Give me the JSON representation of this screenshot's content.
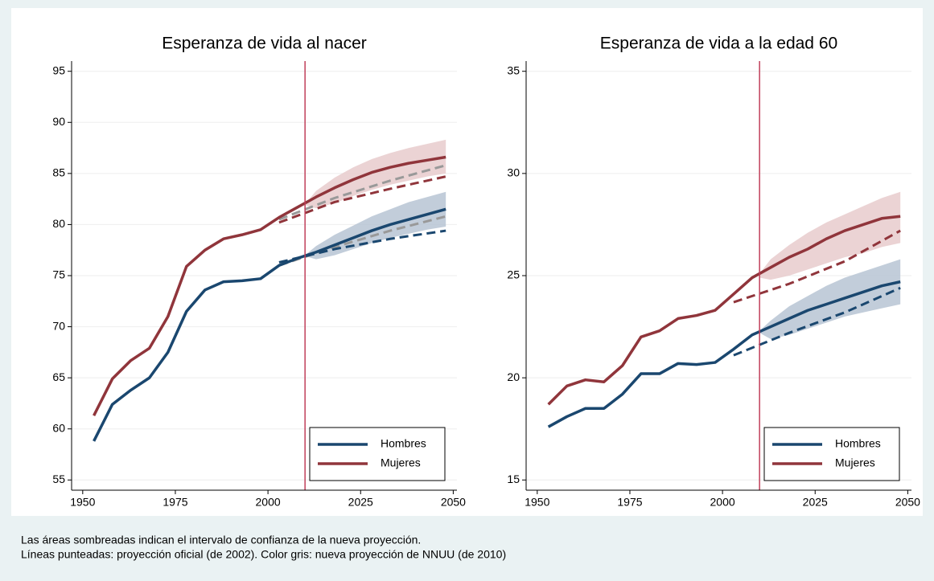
{
  "chart_data": [
    {
      "type": "line",
      "title": "Esperanza de vida al nacer",
      "xlim": [
        1947,
        2051
      ],
      "xticks": [
        1950,
        1975,
        2000,
        2025,
        2050
      ],
      "ylim": [
        54,
        96
      ],
      "yticks": [
        55,
        60,
        65,
        70,
        75,
        80,
        85,
        90,
        95
      ],
      "grid": true,
      "vline": 2010,
      "vline_color": "#c0405a",
      "legend": "bottom-right",
      "bands": [
        {
          "color": "#b7c4d3",
          "x": [
            2010,
            2013,
            2018,
            2023,
            2028,
            2033,
            2038,
            2043,
            2048
          ],
          "lower": [
            76.9,
            76.6,
            77.0,
            77.6,
            78.2,
            78.7,
            79.1,
            79.5,
            79.8
          ],
          "upper": [
            77.0,
            77.9,
            79.0,
            79.9,
            80.8,
            81.5,
            82.2,
            82.7,
            83.2
          ]
        },
        {
          "color": "#e8cbcc",
          "x": [
            2010,
            2013,
            2018,
            2023,
            2028,
            2033,
            2038,
            2043,
            2048
          ],
          "lower": [
            81.9,
            81.6,
            82.1,
            82.8,
            83.4,
            83.9,
            84.3,
            84.7,
            85.0
          ],
          "upper": [
            82.0,
            83.3,
            84.6,
            85.6,
            86.4,
            87.0,
            87.5,
            87.9,
            88.3
          ]
        }
      ],
      "series": [
        {
          "color": "#999999",
          "dash": true,
          "x": [
            2003,
            2018,
            2033,
            2048
          ],
          "values": [
            80.5,
            82.6,
            84.3,
            85.8
          ]
        },
        {
          "color": "#999999",
          "dash": true,
          "x": [
            2003,
            2018,
            2033,
            2048
          ],
          "values": [
            76.0,
            77.8,
            79.4,
            80.8
          ]
        },
        {
          "color": "#90353b",
          "dash": true,
          "x": [
            2003,
            2018,
            2033,
            2048
          ],
          "values": [
            80.2,
            82.2,
            83.5,
            84.7
          ]
        },
        {
          "color": "#1a476f",
          "dash": true,
          "x": [
            2003,
            2018,
            2033,
            2048
          ],
          "values": [
            76.3,
            77.6,
            78.6,
            79.4
          ]
        },
        {
          "name": "Hombres",
          "color": "#1a476f",
          "x": [
            1953,
            1958,
            1963,
            1968,
            1973,
            1978,
            1983,
            1988,
            1993,
            1998,
            2003,
            2008,
            2013,
            2018,
            2023,
            2028,
            2033,
            2038,
            2043,
            2048
          ],
          "values": [
            58.8,
            62.4,
            63.8,
            65.0,
            67.5,
            71.5,
            73.6,
            74.4,
            74.5,
            74.7,
            76.0,
            76.7,
            77.3,
            78.0,
            78.7,
            79.4,
            80.0,
            80.5,
            81.0,
            81.5
          ]
        },
        {
          "name": "Mujeres",
          "color": "#90353b",
          "x": [
            1953,
            1958,
            1963,
            1968,
            1973,
            1978,
            1983,
            1988,
            1993,
            1998,
            2003,
            2008,
            2013,
            2018,
            2023,
            2028,
            2033,
            2038,
            2043,
            2048
          ],
          "values": [
            61.3,
            64.9,
            66.7,
            67.9,
            71.0,
            75.9,
            77.5,
            78.6,
            79.0,
            79.5,
            80.7,
            81.7,
            82.7,
            83.6,
            84.4,
            85.1,
            85.6,
            86.0,
            86.3,
            86.6
          ]
        }
      ]
    },
    {
      "type": "line",
      "title": "Esperanza de vida a la edad 60",
      "xlim": [
        1947,
        2051
      ],
      "xticks": [
        1950,
        1975,
        2000,
        2025,
        2050
      ],
      "ylim": [
        14.5,
        35.5
      ],
      "yticks": [
        15,
        20,
        25,
        30,
        35
      ],
      "grid": true,
      "vline": 2010,
      "vline_color": "#c0405a",
      "legend": "bottom-right",
      "bands": [
        {
          "color": "#b7c4d3",
          "x": [
            2010,
            2013,
            2018,
            2023,
            2028,
            2033,
            2038,
            2043,
            2048
          ],
          "lower": [
            22.2,
            21.9,
            22.1,
            22.4,
            22.7,
            23.0,
            23.2,
            23.4,
            23.6
          ],
          "upper": [
            22.3,
            22.8,
            23.5,
            24.0,
            24.5,
            24.9,
            25.2,
            25.5,
            25.8
          ]
        },
        {
          "color": "#e8cbcc",
          "x": [
            2010,
            2013,
            2018,
            2023,
            2028,
            2033,
            2038,
            2043,
            2048
          ],
          "lower": [
            24.9,
            24.8,
            25.0,
            25.3,
            25.6,
            25.9,
            26.1,
            26.4,
            26.6
          ],
          "upper": [
            25.1,
            25.8,
            26.5,
            27.1,
            27.6,
            28.0,
            28.4,
            28.8,
            29.1
          ]
        }
      ],
      "series": [
        {
          "color": "#90353b",
          "dash": true,
          "x": [
            2003,
            2018,
            2033,
            2048
          ],
          "values": [
            23.7,
            24.6,
            25.7,
            27.2
          ]
        },
        {
          "color": "#1a476f",
          "dash": true,
          "x": [
            2003,
            2018,
            2033,
            2048
          ],
          "values": [
            21.1,
            22.2,
            23.2,
            24.4
          ]
        },
        {
          "name": "Hombres",
          "color": "#1a476f",
          "x": [
            1953,
            1958,
            1963,
            1968,
            1973,
            1978,
            1983,
            1988,
            1993,
            1998,
            2003,
            2008,
            2013,
            2018,
            2023,
            2028,
            2033,
            2038,
            2043,
            2048
          ],
          "values": [
            17.6,
            18.1,
            18.5,
            18.5,
            19.2,
            20.2,
            20.2,
            20.7,
            20.65,
            20.75,
            21.4,
            22.1,
            22.5,
            22.9,
            23.3,
            23.6,
            23.9,
            24.2,
            24.5,
            24.7
          ]
        },
        {
          "name": "Mujeres",
          "color": "#90353b",
          "x": [
            1953,
            1958,
            1963,
            1968,
            1973,
            1978,
            1983,
            1988,
            1993,
            1998,
            2003,
            2008,
            2013,
            2018,
            2023,
            2028,
            2033,
            2038,
            2043,
            2048
          ],
          "values": [
            18.7,
            19.6,
            19.9,
            19.8,
            20.6,
            22.0,
            22.3,
            22.9,
            23.05,
            23.3,
            24.1,
            24.9,
            25.4,
            25.9,
            26.3,
            26.8,
            27.2,
            27.5,
            27.8,
            27.9
          ]
        }
      ]
    }
  ],
  "notes": [
    "Las áreas sombreadas indican el intervalo de confianza de la nueva proyección.",
    "Líneas punteadas: proyección oficial (de 2002). Color gris: nueva proyección de NNUU (de 2010)"
  ]
}
